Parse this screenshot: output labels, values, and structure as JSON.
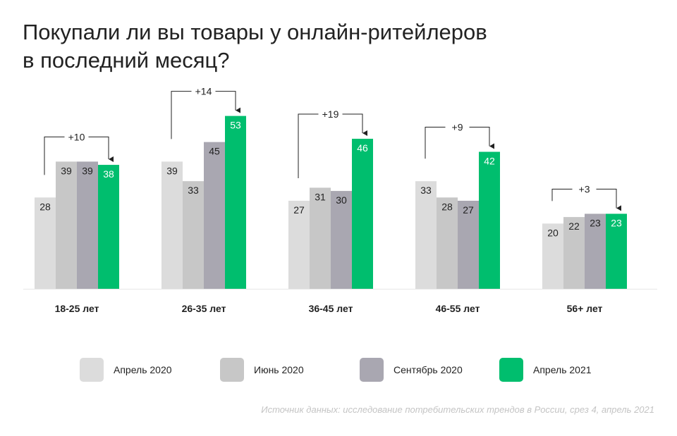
{
  "title_lines": [
    "Покупали ли вы товары у онлайн-ритейлеров",
    "в последний месяц?"
  ],
  "source": "Источник данных: исследование потребительских трендов в России, срез 4, апрель 2021",
  "colors": {
    "Апрель 2020": "#dcdcdc",
    "Июнь 2020": "#c7c7c7",
    "Сентябрь 2020": "#a9a7b1",
    "Апрель 2021": "#00be6e"
  },
  "chart_data": {
    "type": "bar",
    "categories": [
      "18-25 лет",
      "26-35 лет",
      "36-45 лет",
      "46-55 лет",
      "56+ лет"
    ],
    "series": [
      {
        "name": "Апрель 2020",
        "values": [
          28,
          39,
          27,
          33,
          20
        ]
      },
      {
        "name": "Июнь 2020",
        "values": [
          39,
          33,
          31,
          28,
          22
        ]
      },
      {
        "name": "Сентябрь 2020",
        "values": [
          39,
          45,
          30,
          27,
          23
        ]
      },
      {
        "name": "Апрель 2021",
        "values": [
          38,
          53,
          46,
          42,
          23
        ]
      }
    ],
    "changes": [
      "+10",
      "+14",
      "+19",
      "+9",
      "+3"
    ],
    "ylim": [
      0,
      56
    ],
    "legend": "bottom",
    "grid": false
  }
}
